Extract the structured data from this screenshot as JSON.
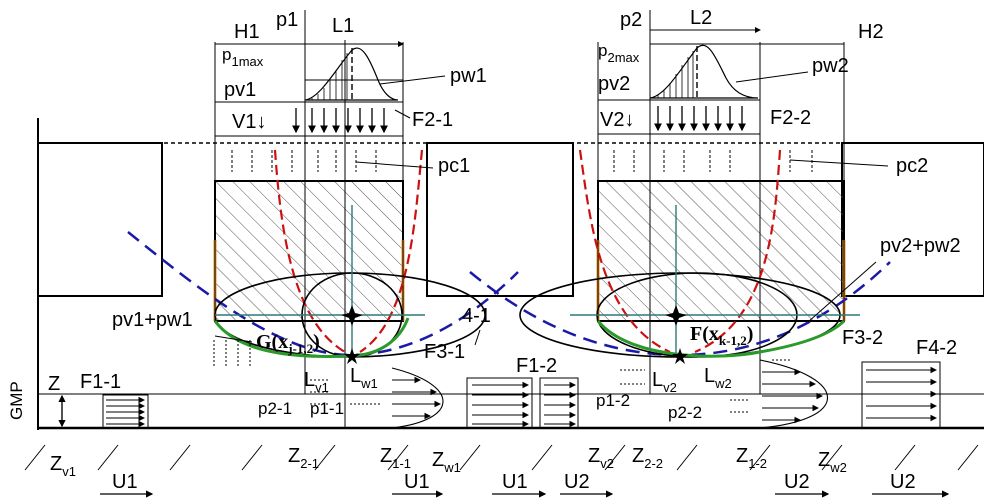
{
  "labels": {
    "H1": "H1",
    "p1": "p1",
    "L1": "L1",
    "p1max": "p",
    "p1max_sub": "1max",
    "pw1": "pw1",
    "pv1": "pv1",
    "V1": "V1↓",
    "F2_1": "F2-1",
    "pc1": "pc1",
    "p2": "p2",
    "L2": "L2",
    "H2": "H2",
    "p2max": "p",
    "p2max_sub": "2max",
    "pw2": "pw2",
    "pv2": "pv2",
    "V2": "V2↓",
    "F2_2": "F2-2",
    "pc2": "pc2",
    "pv2pw2": "pv2+pw2",
    "pv1pw1": "pv1+pw1",
    "G": "G(x",
    "G_sub": "j-1,2",
    "G_close": ")",
    "F": "F(x",
    "F_sub": "k-1,2",
    "F_close": ")",
    "F1_1": "F1-1",
    "F1_2": "F1-2",
    "F3_1": "F3-1",
    "F3_2": "F3-2",
    "F4_2": "F4-2",
    "four_one": "4-1",
    "Z": "Z",
    "GMP": "GMP",
    "Lv1": "L",
    "Lv1_sub": "v1",
    "Lw1": "L",
    "Lw1_sub": "w1",
    "Lv2": "L",
    "Lv2_sub": "v2",
    "Lw2": "L",
    "Lw2_sub": "w2",
    "p2_1": "p2-1",
    "p1_1": "p1-1",
    "p1_2": "p1-2",
    "p2_2": "p2-2",
    "Zv1": "Z",
    "Zv1_sub": "v1",
    "Z2_1": "Z",
    "Z2_1_sub": "2-1",
    "Z1_1": "Z",
    "Z1_1_sub": "1-1",
    "Zw1": "Z",
    "Zw1_sub": "w1",
    "Zv2": "Z",
    "Zv2_sub": "v2",
    "Z2_2": "Z",
    "Z2_2_sub": "2-2",
    "Z1_2": "Z",
    "Z1_2_sub": "1-2",
    "Zw2": "Z",
    "Zw2_sub": "w2",
    "U1a": "U1",
    "U1b": "U1",
    "U1c": "U1",
    "U2a": "U2",
    "U2b": "U2",
    "U2c": "U2"
  },
  "colors": {
    "line": "#000000",
    "red_curve": "#cc1111",
    "blue_curve": "#1a1aa6",
    "green_curve": "#2a9a2a",
    "orange_edge": "#e8902a",
    "axis_teal": "#2b7a78"
  }
}
